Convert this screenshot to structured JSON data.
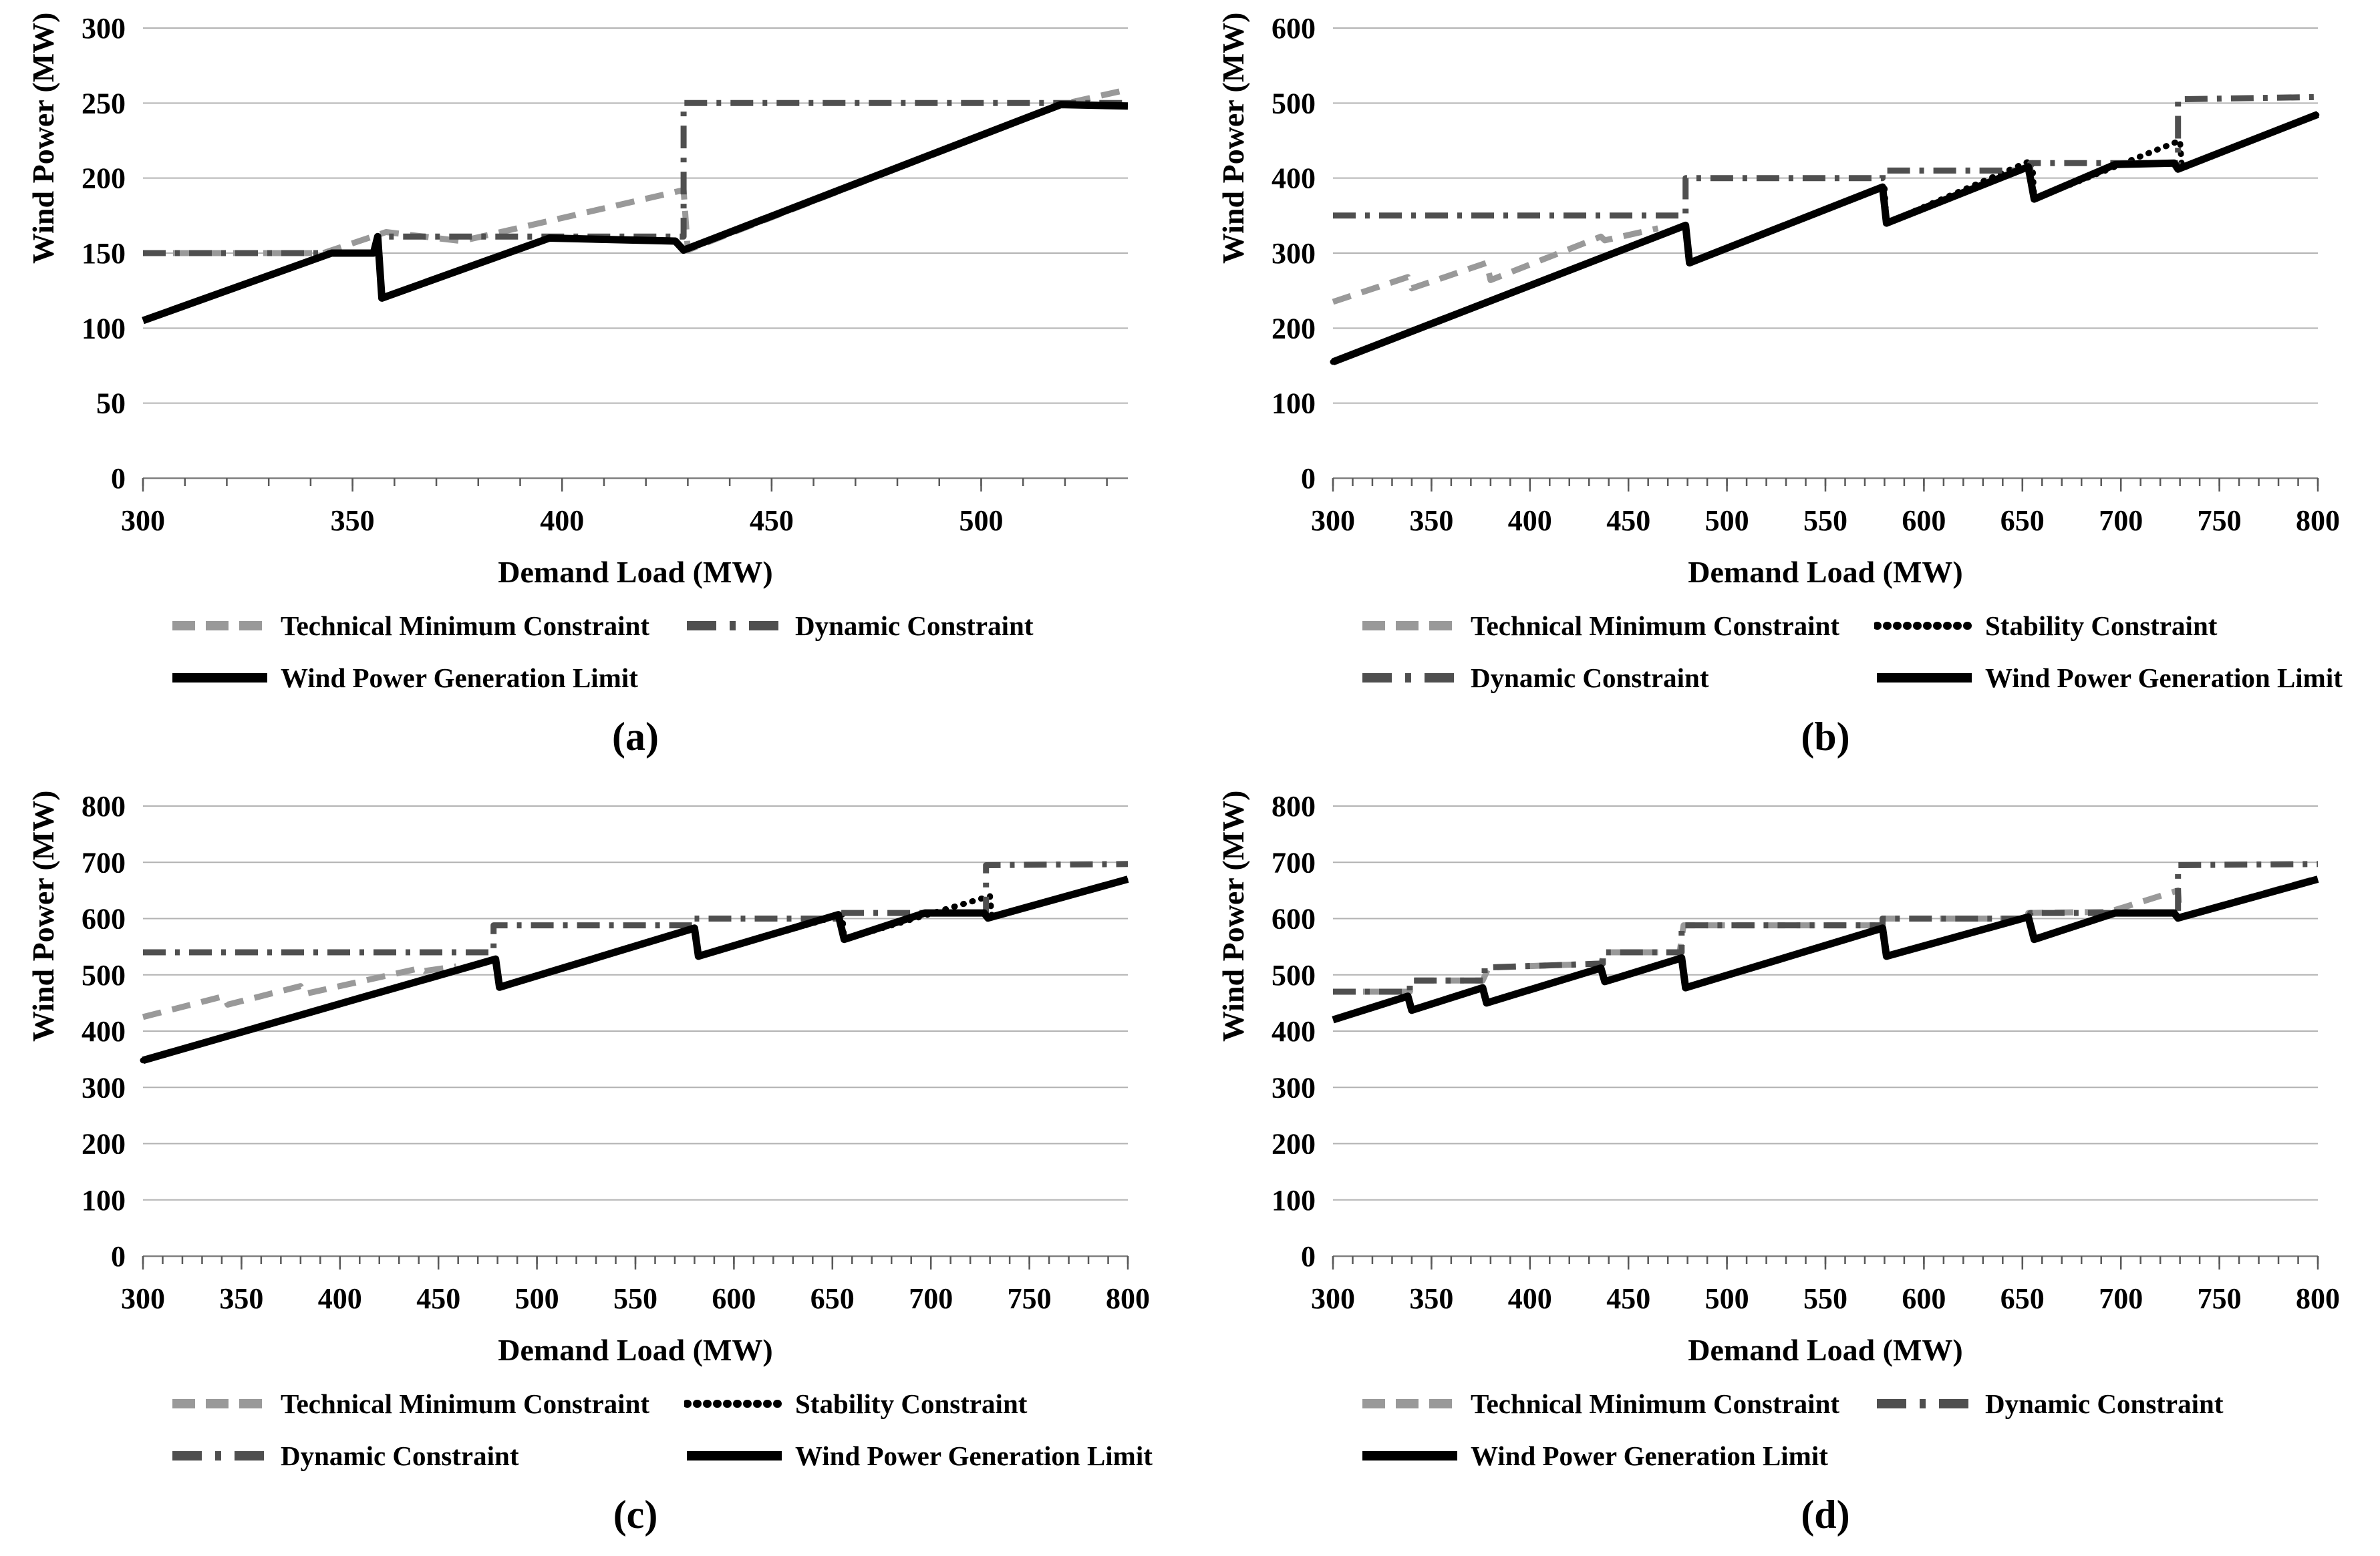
{
  "style": {
    "series_colors": {
      "solid": "#000000",
      "dashed": "#999999",
      "dashdot": "#4f4f4f",
      "dotted": "#000000"
    },
    "grid_color": "#b3b3b3",
    "axis_color": "#808080",
    "tick_color": "#595959",
    "text_color": "#000000"
  },
  "legend_entry_labels": {
    "technical": "Technical Minimum Constraint",
    "stability": "Stability Constraint",
    "dynamic": "Dynamic Constraint",
    "wind": "Wind Power Generation Limit"
  },
  "chart_data": [
    {
      "panel": "a",
      "type": "line",
      "caption": "(a)",
      "xlabel": "Demand Load (MW)",
      "ylabel": "Wind Power (MW)",
      "x": {
        "min": 300,
        "max": 535,
        "major_ticks": [
          300,
          350,
          400,
          450,
          500
        ],
        "minor_step": 10
      },
      "y": {
        "min": 0,
        "max": 300,
        "ticks": [
          0,
          50,
          100,
          150,
          200,
          250,
          300
        ]
      },
      "legend_rows": [
        [
          {
            "label": "Technical Minimum Constraint",
            "style": "dashed"
          },
          {
            "label": "Dynamic Constraint",
            "style": "dashdot"
          }
        ],
        [
          {
            "label": "Wind Power Generation Limit",
            "style": "solid"
          }
        ]
      ],
      "series": [
        {
          "name": "Technical Minimum Constraint",
          "style": "dashed",
          "points": [
            [
              300,
              150
            ],
            [
              343,
              150
            ],
            [
              358,
              164
            ],
            [
              376,
              158
            ],
            [
              429,
              192
            ],
            [
              430,
              152
            ],
            [
              519,
              249
            ],
            [
              535,
              259
            ]
          ]
        },
        {
          "name": "Dynamic Constraint",
          "style": "dashdot",
          "points": [
            [
              300,
              150
            ],
            [
              356,
              150
            ],
            [
              356,
              161
            ],
            [
              429,
              161
            ],
            [
              429,
              250
            ],
            [
              535,
              250
            ]
          ]
        },
        {
          "name": "Wind Power Generation Limit",
          "style": "solid",
          "points": [
            [
              300,
              105
            ],
            [
              345,
              150
            ],
            [
              355,
              150
            ],
            [
              356,
              161
            ],
            [
              357,
              120
            ],
            [
              397,
              160
            ],
            [
              427,
              158
            ],
            [
              429,
              152
            ],
            [
              519,
              249
            ],
            [
              535,
              248
            ]
          ]
        }
      ]
    },
    {
      "panel": "b",
      "type": "line",
      "caption": "(b)",
      "xlabel": "Demand Load (MW)",
      "ylabel": "Wind Power (MW)",
      "x": {
        "min": 300,
        "max": 800,
        "major_ticks": [
          300,
          350,
          400,
          450,
          500,
          550,
          600,
          650,
          700,
          750,
          800
        ],
        "minor_step": 10
      },
      "y": {
        "min": 0,
        "max": 600,
        "ticks": [
          0,
          100,
          200,
          300,
          400,
          500,
          600
        ]
      },
      "legend_rows": [
        [
          {
            "label": "Technical Minimum Constraint",
            "style": "dashed"
          },
          {
            "label": "Stability Constraint",
            "style": "dotted"
          }
        ],
        [
          {
            "label": "Dynamic Constraint",
            "style": "dashdot"
          },
          {
            "label": "Wind Power Generation Limit",
            "style": "solid"
          }
        ]
      ],
      "series": [
        {
          "name": "Technical Minimum Constraint",
          "style": "dashed",
          "points": [
            [
              300,
              235
            ],
            [
              338,
              268
            ],
            [
              340,
              253
            ],
            [
              378,
              287
            ],
            [
              380,
              264
            ],
            [
              436,
              322
            ],
            [
              438,
              317
            ],
            [
              465,
              333
            ]
          ]
        },
        {
          "name": "Stability Constraint",
          "style": "dotted",
          "points": [
            [
              300,
              155
            ],
            [
              479,
              337
            ],
            [
              481,
              287
            ],
            [
              580,
              388
            ],
            [
              581,
              340
            ],
            [
              655,
              424
            ],
            [
              656,
              372
            ],
            [
              730,
              450
            ],
            [
              731,
              413
            ],
            [
              800,
              485
            ]
          ]
        },
        {
          "name": "Dynamic Constraint",
          "style": "dashdot",
          "points": [
            [
              300,
              350
            ],
            [
              479,
              350
            ],
            [
              479,
              400
            ],
            [
              579,
              400
            ],
            [
              579,
              410
            ],
            [
              654,
              410
            ],
            [
              654,
              420
            ],
            [
              729,
              420
            ],
            [
              729,
              505
            ],
            [
              800,
              508
            ]
          ]
        },
        {
          "name": "Wind Power Generation Limit",
          "style": "solid",
          "points": [
            [
              300,
              155
            ],
            [
              479,
              337
            ],
            [
              481,
              287
            ],
            [
              579,
              388
            ],
            [
              581,
              340
            ],
            [
              653,
              415
            ],
            [
              656,
              372
            ],
            [
              697,
              418
            ],
            [
              727,
              420
            ],
            [
              729,
              412
            ],
            [
              800,
              485
            ]
          ]
        }
      ]
    },
    {
      "panel": "c",
      "type": "line",
      "caption": "(c)",
      "xlabel": "Demand Load (MW)",
      "ylabel": "Wind Power (MW)",
      "x": {
        "min": 300,
        "max": 800,
        "major_ticks": [
          300,
          350,
          400,
          450,
          500,
          550,
          600,
          650,
          700,
          750,
          800
        ],
        "minor_step": 10
      },
      "y": {
        "min": 0,
        "max": 800,
        "ticks": [
          0,
          100,
          200,
          300,
          400,
          500,
          600,
          700,
          800
        ]
      },
      "legend_rows": [
        [
          {
            "label": "Technical Minimum Constraint",
            "style": "dashed"
          },
          {
            "label": "Stability Constraint",
            "style": "dotted"
          }
        ],
        [
          {
            "label": "Dynamic Constraint",
            "style": "dashdot"
          },
          {
            "label": "Wind Power Generation Limit",
            "style": "solid"
          }
        ]
      ],
      "series": [
        {
          "name": "Technical Minimum Constraint",
          "style": "dashed",
          "points": [
            [
              300,
              425
            ],
            [
              341,
              462
            ],
            [
              343,
              447
            ],
            [
              380,
              480
            ],
            [
              382,
              466
            ],
            [
              441,
              512
            ],
            [
              443,
              507
            ],
            [
              459,
              515
            ]
          ]
        },
        {
          "name": "Stability Constraint",
          "style": "dotted",
          "points": [
            [
              300,
              348
            ],
            [
              479,
              528
            ],
            [
              481,
              478
            ],
            [
              580,
              583
            ],
            [
              582,
              533
            ],
            [
              655,
              607
            ],
            [
              656,
              563
            ],
            [
              730,
              640
            ],
            [
              731,
              602
            ],
            [
              800,
              670
            ]
          ]
        },
        {
          "name": "Dynamic Constraint",
          "style": "dashdot",
          "points": [
            [
              300,
              540
            ],
            [
              478,
              540
            ],
            [
              478,
              588
            ],
            [
              579,
              588
            ],
            [
              579,
              600
            ],
            [
              654,
              600
            ],
            [
              654,
              610
            ],
            [
              728,
              610
            ],
            [
              728,
              695
            ],
            [
              800,
              697
            ]
          ]
        },
        {
          "name": "Wind Power Generation Limit",
          "style": "solid",
          "points": [
            [
              300,
              348
            ],
            [
              479,
              528
            ],
            [
              481,
              478
            ],
            [
              580,
              583
            ],
            [
              582,
              533
            ],
            [
              653,
              607
            ],
            [
              656,
              563
            ],
            [
              697,
              610
            ],
            [
              727,
              610
            ],
            [
              729,
              601
            ],
            [
              800,
              670
            ]
          ]
        }
      ]
    },
    {
      "panel": "d",
      "type": "line",
      "caption": "(d)",
      "xlabel": "Demand Load (MW)",
      "ylabel": "Wind Power (MW)",
      "x": {
        "min": 300,
        "max": 800,
        "major_ticks": [
          300,
          350,
          400,
          450,
          500,
          550,
          600,
          650,
          700,
          750,
          800
        ],
        "minor_step": 10
      },
      "y": {
        "min": 0,
        "max": 800,
        "ticks": [
          0,
          100,
          200,
          300,
          400,
          500,
          600,
          700,
          800
        ]
      },
      "legend_rows": [
        [
          {
            "label": "Technical Minimum Constraint",
            "style": "dashed"
          },
          {
            "label": "Dynamic Constraint",
            "style": "dashdot"
          }
        ],
        [
          {
            "label": "Wind Power Generation Limit",
            "style": "solid"
          }
        ]
      ],
      "series": [
        {
          "name": "Technical Minimum Constraint",
          "style": "dashed",
          "points": [
            [
              300,
              470
            ],
            [
              339,
              470
            ],
            [
              341,
              490
            ],
            [
              376,
              490
            ],
            [
              379,
              513
            ],
            [
              436,
              520
            ],
            [
              438,
              540
            ],
            [
              476,
              540
            ],
            [
              478,
              588
            ],
            [
              579,
              588
            ],
            [
              579,
              600
            ],
            [
              653,
              600
            ],
            [
              653,
              610
            ],
            [
              694,
              612
            ],
            [
              729,
              650
            ],
            [
              730,
              603
            ],
            [
              800,
              672
            ]
          ]
        },
        {
          "name": "Dynamic Constraint",
          "style": "dashdot",
          "points": [
            [
              300,
              470
            ],
            [
              339,
              470
            ],
            [
              339,
              490
            ],
            [
              377,
              490
            ],
            [
              377,
              513
            ],
            [
              437,
              520
            ],
            [
              437,
              540
            ],
            [
              477,
              540
            ],
            [
              477,
              588
            ],
            [
              579,
              588
            ],
            [
              579,
              600
            ],
            [
              654,
              600
            ],
            [
              654,
              610
            ],
            [
              729,
              610
            ],
            [
              729,
              695
            ],
            [
              800,
              697
            ]
          ]
        },
        {
          "name": "Wind Power Generation Limit",
          "style": "solid",
          "points": [
            [
              300,
              420
            ],
            [
              338,
              462
            ],
            [
              340,
              437
            ],
            [
              376,
              477
            ],
            [
              378,
              450
            ],
            [
              436,
              512
            ],
            [
              438,
              488
            ],
            [
              477,
              530
            ],
            [
              479,
              477
            ],
            [
              579,
              583
            ],
            [
              581,
              533
            ],
            [
              653,
              603
            ],
            [
              656,
              563
            ],
            [
              697,
              610
            ],
            [
              727,
              610
            ],
            [
              729,
              601
            ],
            [
              800,
              670
            ]
          ]
        }
      ]
    }
  ]
}
